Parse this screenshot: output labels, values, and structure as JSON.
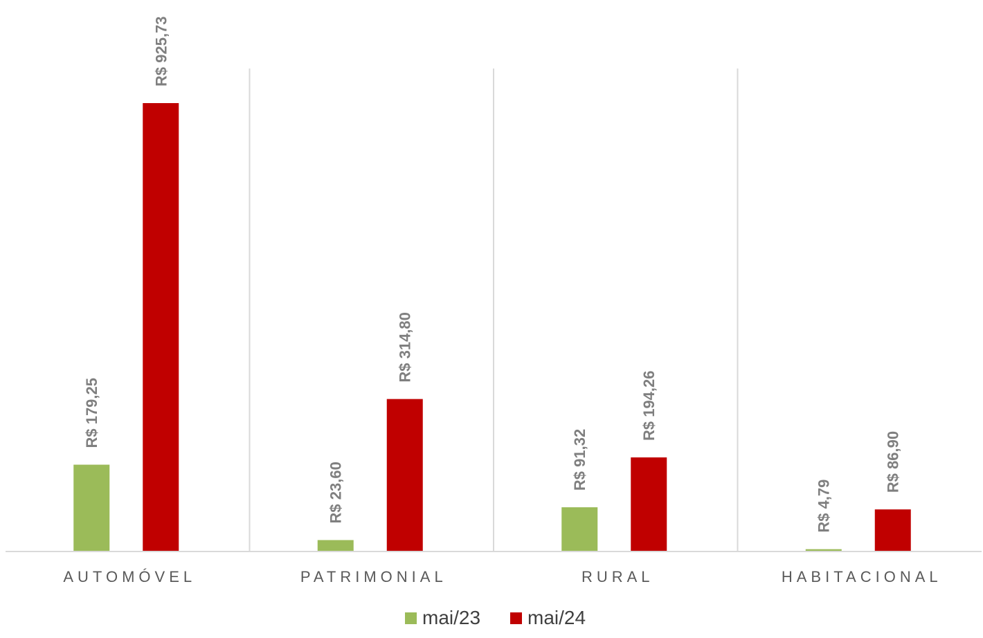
{
  "chart_data": {
    "type": "bar",
    "categories": [
      "AUTOMÓVEL",
      "PATRIMONIAL",
      "RURAL",
      "HABITACIONAL"
    ],
    "series": [
      {
        "name": "mai/23",
        "color": "#9bbb59",
        "values": [
          179.25,
          23.6,
          91.32,
          4.79
        ],
        "labels": [
          "R$ 179,25",
          "R$ 23,60",
          "R$ 91,32",
          "R$ 4,79"
        ]
      },
      {
        "name": "mai/24",
        "color": "#c00000",
        "values": [
          925.73,
          314.8,
          194.26,
          86.9
        ],
        "labels": [
          "R$ 925,73",
          "R$ 314,80",
          "R$ 194,26",
          "R$ 86,90"
        ]
      }
    ],
    "ylim": [
      0,
      1000
    ],
    "legend_position": "bottom",
    "grid": false,
    "category_separators": true
  }
}
